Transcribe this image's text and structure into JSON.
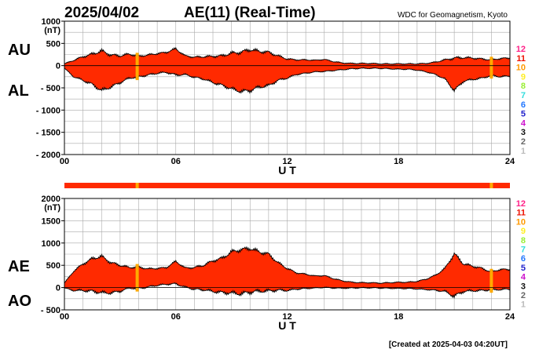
{
  "header": {
    "date": "2025/04/02",
    "title": "AE(11) (Real-Time)",
    "source": "WDC for Geomagnetism, Kyoto",
    "created": "[Created at 2025-04-03 04:20UT]"
  },
  "chart_data": [
    {
      "type": "area",
      "panel": "AU/AL",
      "labels": {
        "upper": "AU",
        "lower": "AL"
      },
      "unit_label": "(nT)",
      "ylim": [
        -2000,
        1000
      ],
      "y_ticks": [
        1000,
        500,
        0,
        -500,
        -1000,
        -1500,
        -2000
      ],
      "y_tick_labels": [
        "1000",
        "500",
        "0",
        "- 500",
        "- 1000",
        "- 1500",
        "- 2000"
      ],
      "xlim": [
        0,
        24
      ],
      "x_ticks": [
        0,
        6,
        12,
        18,
        24
      ],
      "x_tick_labels": [
        "00",
        "06",
        "12",
        "18",
        "24"
      ],
      "xlabel": "U T",
      "series": [
        {
          "name": "AU",
          "x": [
            0,
            0.5,
            1,
            1.5,
            2,
            2.5,
            3,
            3.5,
            4,
            4.5,
            5,
            5.5,
            6,
            6.5,
            7,
            7.5,
            8,
            8.5,
            9,
            9.5,
            10,
            10.5,
            11,
            11.5,
            12,
            12.5,
            13,
            13.5,
            14,
            14.5,
            15,
            15.5,
            16,
            16.5,
            17,
            17.5,
            18,
            18.5,
            19,
            19.5,
            20,
            20.5,
            21,
            21.5,
            22,
            22.5,
            23,
            23.5,
            24
          ],
          "values": [
            40,
            120,
            200,
            260,
            330,
            240,
            220,
            260,
            210,
            240,
            270,
            300,
            380,
            220,
            190,
            200,
            210,
            220,
            280,
            300,
            360,
            320,
            300,
            220,
            150,
            130,
            130,
            120,
            140,
            90,
            60,
            50,
            50,
            50,
            40,
            40,
            40,
            40,
            40,
            50,
            80,
            130,
            170,
            180,
            170,
            150,
            130,
            160,
            170
          ]
        },
        {
          "name": "AL",
          "x": [
            0,
            0.5,
            1,
            1.5,
            2,
            2.5,
            3,
            3.5,
            4,
            4.5,
            5,
            5.5,
            6,
            6.5,
            7,
            7.5,
            8,
            8.5,
            9,
            9.5,
            10,
            10.5,
            11,
            11.5,
            12,
            12.5,
            13,
            13.5,
            14,
            14.5,
            15,
            15.5,
            16,
            16.5,
            17,
            17.5,
            18,
            18.5,
            19,
            19.5,
            20,
            20.5,
            21,
            21.5,
            22,
            22.5,
            23,
            23.5,
            24
          ],
          "values": [
            -60,
            -250,
            -330,
            -420,
            -560,
            -480,
            -380,
            -280,
            -250,
            -210,
            -170,
            -150,
            -210,
            -200,
            -260,
            -300,
            -380,
            -440,
            -520,
            -580,
            -560,
            -480,
            -450,
            -330,
            -280,
            -200,
            -170,
            -140,
            -130,
            -110,
            -90,
            -70,
            -60,
            -60,
            -60,
            -70,
            -80,
            -80,
            -100,
            -140,
            -200,
            -300,
            -560,
            -350,
            -310,
            -280,
            -220,
            -250,
            -230
          ]
        }
      ],
      "gaps_ut": [
        3.92,
        23.0
      ],
      "colors": {
        "fill": "#ff2a00",
        "gap": "#ffaa00",
        "line": "#000000"
      }
    },
    {
      "type": "area",
      "panel": "AE/AO",
      "labels": {
        "upper": "AE",
        "lower": "AO"
      },
      "unit_label": "(nT)",
      "ylim": [
        -500,
        2000
      ],
      "y_ticks": [
        2000,
        1500,
        1000,
        500,
        0,
        -500
      ],
      "y_tick_labels": [
        "2000",
        "1500",
        "1000",
        "500",
        "0",
        "- 500"
      ],
      "xlim": [
        0,
        24
      ],
      "x_ticks": [
        0,
        6,
        12,
        18,
        24
      ],
      "x_tick_labels": [
        "00",
        "06",
        "12",
        "18",
        "24"
      ],
      "xlabel": "U T",
      "series": [
        {
          "name": "AE",
          "x": [
            0,
            0.5,
            1,
            1.5,
            2,
            2.5,
            3,
            3.5,
            4,
            4.5,
            5,
            5.5,
            6,
            6.5,
            7,
            7.5,
            8,
            8.5,
            9,
            9.5,
            10,
            10.5,
            11,
            11.5,
            12,
            12.5,
            13,
            13.5,
            14,
            14.5,
            15,
            15.5,
            16,
            16.5,
            17,
            17.5,
            18,
            18.5,
            19,
            19.5,
            20,
            20.5,
            21,
            21.5,
            22,
            22.5,
            23,
            23.5,
            24
          ],
          "values": [
            100,
            370,
            530,
            650,
            700,
            560,
            500,
            450,
            460,
            420,
            430,
            450,
            590,
            440,
            450,
            500,
            600,
            660,
            800,
            850,
            880,
            800,
            750,
            560,
            430,
            330,
            300,
            260,
            270,
            200,
            150,
            120,
            110,
            110,
            100,
            110,
            120,
            120,
            140,
            190,
            280,
            430,
            760,
            530,
            480,
            430,
            350,
            410,
            400
          ]
        },
        {
          "name": "AO",
          "x": [
            0,
            0.5,
            1,
            1.5,
            2,
            2.5,
            3,
            3.5,
            4,
            4.5,
            5,
            5.5,
            6,
            6.5,
            7,
            7.5,
            8,
            8.5,
            9,
            9.5,
            10,
            10.5,
            11,
            11.5,
            12,
            12.5,
            13,
            13.5,
            14,
            14.5,
            15,
            15.5,
            16,
            16.5,
            17,
            17.5,
            18,
            18.5,
            19,
            19.5,
            20,
            20.5,
            21,
            21.5,
            22,
            22.5,
            23,
            23.5,
            24
          ],
          "values": [
            -10,
            -65,
            -65,
            -80,
            -115,
            -120,
            -80,
            -10,
            -20,
            15,
            50,
            75,
            85,
            10,
            -35,
            -50,
            -85,
            -110,
            -120,
            -140,
            -100,
            -80,
            -75,
            -55,
            -65,
            -35,
            -20,
            -10,
            5,
            -10,
            -15,
            -10,
            -5,
            -5,
            -10,
            -15,
            -20,
            -20,
            -30,
            -45,
            -60,
            -85,
            -195,
            -85,
            -70,
            -65,
            -45,
            -45,
            -30
          ]
        }
      ],
      "gaps_ut": [
        3.92,
        23.0
      ],
      "colors": {
        "fill": "#ff2a00",
        "gap": "#ffaa00",
        "line": "#000000"
      }
    }
  ],
  "status_bar": {
    "color": "#ff2a00",
    "gap_color": "#ffaa00"
  },
  "legend": [
    {
      "label": "12",
      "color": "#ff2288"
    },
    {
      "label": "11",
      "color": "#ee1100"
    },
    {
      "label": "10",
      "color": "#ff9900"
    },
    {
      "label": "9",
      "color": "#ffee22"
    },
    {
      "label": "8",
      "color": "#99ee33"
    },
    {
      "label": "7",
      "color": "#33dddd"
    },
    {
      "label": "6",
      "color": "#2277ff"
    },
    {
      "label": "5",
      "color": "#2222cc"
    },
    {
      "label": "4",
      "color": "#cc11cc"
    },
    {
      "label": "3",
      "color": "#111111"
    },
    {
      "label": "2",
      "color": "#666666"
    },
    {
      "label": "1",
      "color": "#bbbbbb"
    }
  ]
}
